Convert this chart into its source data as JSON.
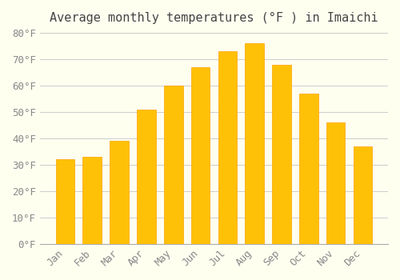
{
  "title": "Average monthly temperatures (°F ) in Imaichi",
  "months": [
    "Jan",
    "Feb",
    "Mar",
    "Apr",
    "May",
    "Jun",
    "Jul",
    "Aug",
    "Sep",
    "Oct",
    "Nov",
    "Dec"
  ],
  "values": [
    32,
    33,
    39,
    51,
    60,
    67,
    73,
    76,
    68,
    57,
    46,
    37
  ],
  "bar_color": "#FFC107",
  "bar_edge_color": "#FFA000",
  "background_color": "#FFFFF0",
  "grid_color": "#CCCCCC",
  "text_color": "#888888",
  "ylim": [
    0,
    80
  ],
  "yticks": [
    0,
    10,
    20,
    30,
    40,
    50,
    60,
    70,
    80
  ],
  "title_fontsize": 11,
  "tick_fontsize": 9
}
